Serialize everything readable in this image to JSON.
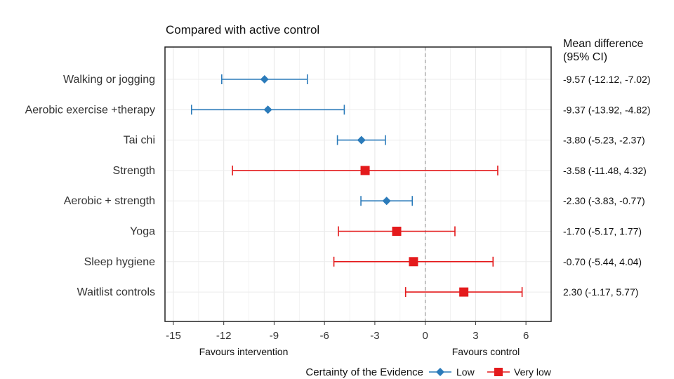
{
  "chart_data": {
    "type": "forest",
    "title": "Compared with active control",
    "header": [
      "Mean difference",
      "(95% CI)"
    ],
    "xlim": [
      -15.5,
      7.5
    ],
    "xticks": [
      -15,
      -12,
      -9,
      -6,
      -3,
      0,
      3,
      6
    ],
    "reference_line": 0,
    "x_annotations": {
      "left": "Favours intervention",
      "right": "Favours control"
    },
    "legend": {
      "title": "Certainty of the Evidence",
      "items": [
        {
          "label": "Low",
          "color": "#2b7bba",
          "shape": "diamond"
        },
        {
          "label": "Very low",
          "color": "#e41a1c",
          "shape": "square"
        }
      ]
    },
    "rows": [
      {
        "label": "Walking or jogging",
        "mean": -9.57,
        "lower": -12.12,
        "upper": -7.02,
        "certainty": "Low",
        "ci_text": "-9.57 (-12.12, -7.02)"
      },
      {
        "label": "Aerobic exercise +therapy",
        "mean": -9.37,
        "lower": -13.92,
        "upper": -4.82,
        "certainty": "Low",
        "ci_text": "-9.37 (-13.92, -4.82)"
      },
      {
        "label": "Tai chi",
        "mean": -3.8,
        "lower": -5.23,
        "upper": -2.37,
        "certainty": "Low",
        "ci_text": "-3.80 (-5.23, -2.37)"
      },
      {
        "label": "Strength",
        "mean": -3.58,
        "lower": -11.48,
        "upper": 4.32,
        "certainty": "Very low",
        "ci_text": "-3.58 (-11.48, 4.32)"
      },
      {
        "label": "Aerobic + strength",
        "mean": -2.3,
        "lower": -3.83,
        "upper": -0.77,
        "certainty": "Low",
        "ci_text": "-2.30 (-3.83, -0.77)"
      },
      {
        "label": "Yoga",
        "mean": -1.7,
        "lower": -5.17,
        "upper": 1.77,
        "certainty": "Very low",
        "ci_text": "-1.70 (-5.17, 1.77)"
      },
      {
        "label": "Sleep hygiene",
        "mean": -0.7,
        "lower": -5.44,
        "upper": 4.04,
        "certainty": "Very low",
        "ci_text": "-0.70 (-5.44, 4.04)"
      },
      {
        "label": "Waitlist controls",
        "mean": 2.3,
        "lower": -1.17,
        "upper": 5.77,
        "certainty": "Very low",
        "ci_text": "2.30 (-1.17, 5.77)"
      }
    ]
  }
}
